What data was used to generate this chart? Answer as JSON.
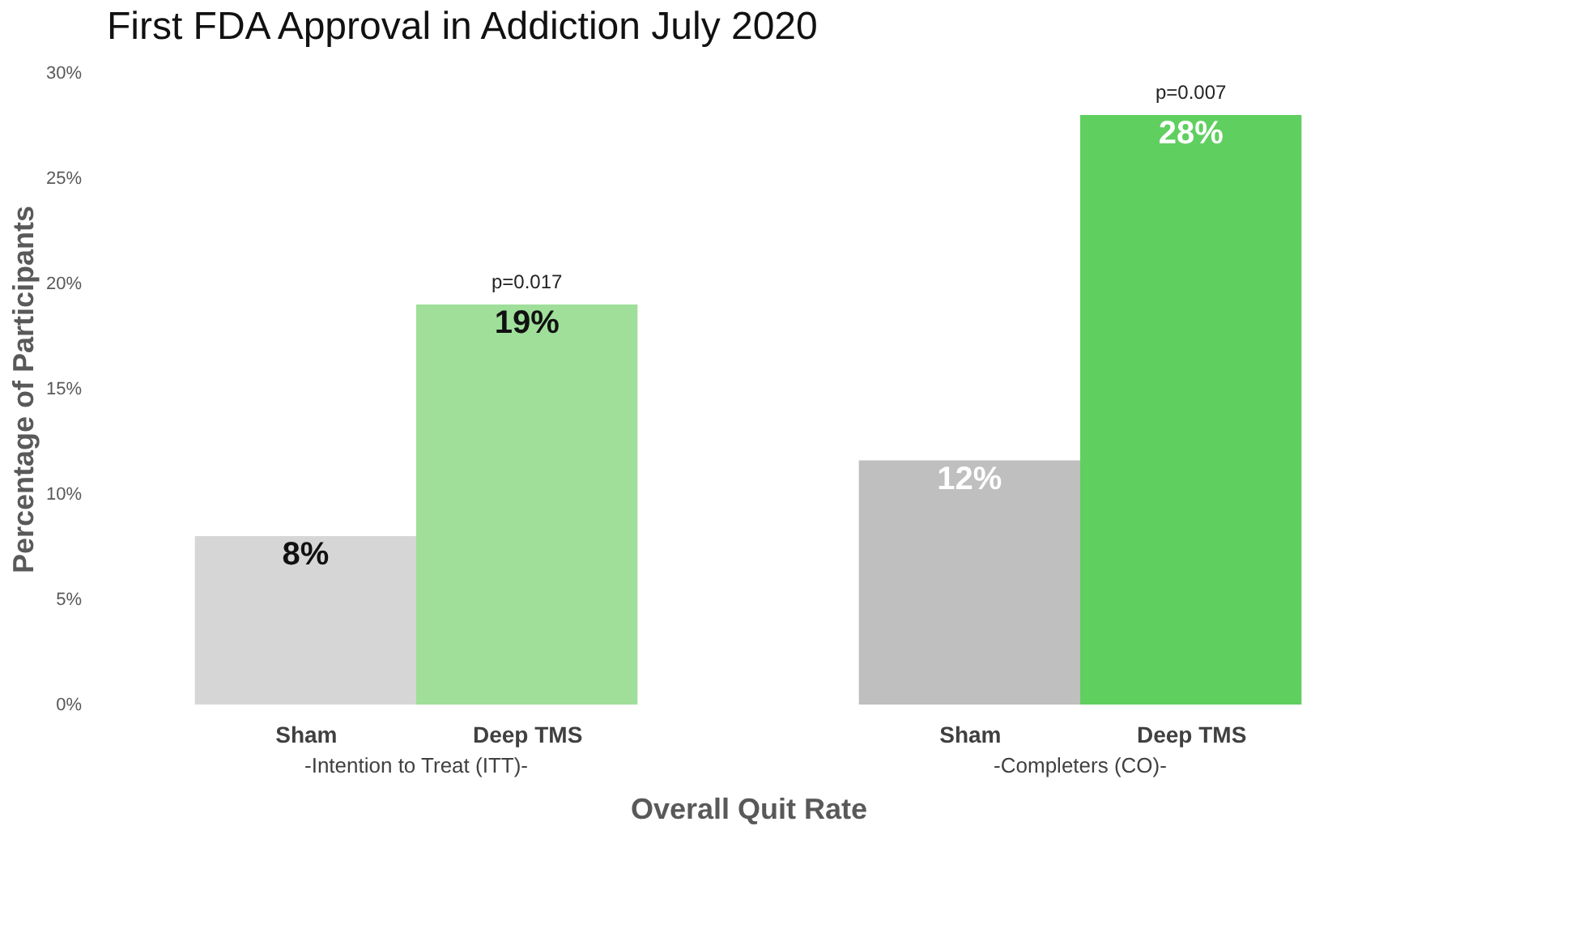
{
  "chart_data": {
    "type": "bar",
    "title": "First FDA Approval in Addiction July 2020",
    "xlabel": "Overall Quit Rate",
    "ylabel": "Percentage of Participants",
    "categories": [
      "Sham",
      "Deep TMS",
      null,
      "Sham",
      "Deep TMS"
    ],
    "values": [
      8,
      19,
      null,
      11.6,
      28
    ],
    "colors": [
      "#d6d6d6",
      "#9fdf9a",
      "#ffffff",
      "#bfbfbf",
      "#5fcf5f"
    ],
    "value_labels": [
      "8%",
      "19%",
      null,
      "12%",
      "28%"
    ],
    "ylim": [
      0,
      30
    ],
    "yticks": [
      {
        "value": 0,
        "label": "0%"
      },
      {
        "value": 5,
        "label": "5%"
      },
      {
        "value": 10,
        "label": "10%"
      },
      {
        "value": 15,
        "label": "15%"
      },
      {
        "value": 20,
        "label": "20%"
      },
      {
        "value": 25,
        "label": "25%"
      },
      {
        "value": 30,
        "label": "30%"
      }
    ],
    "annotations": [
      "p=0.017",
      "p=0.007",
      "-Intention to Treat (ITT)-",
      "-Completers (CO)-"
    ],
    "grid": false
  }
}
